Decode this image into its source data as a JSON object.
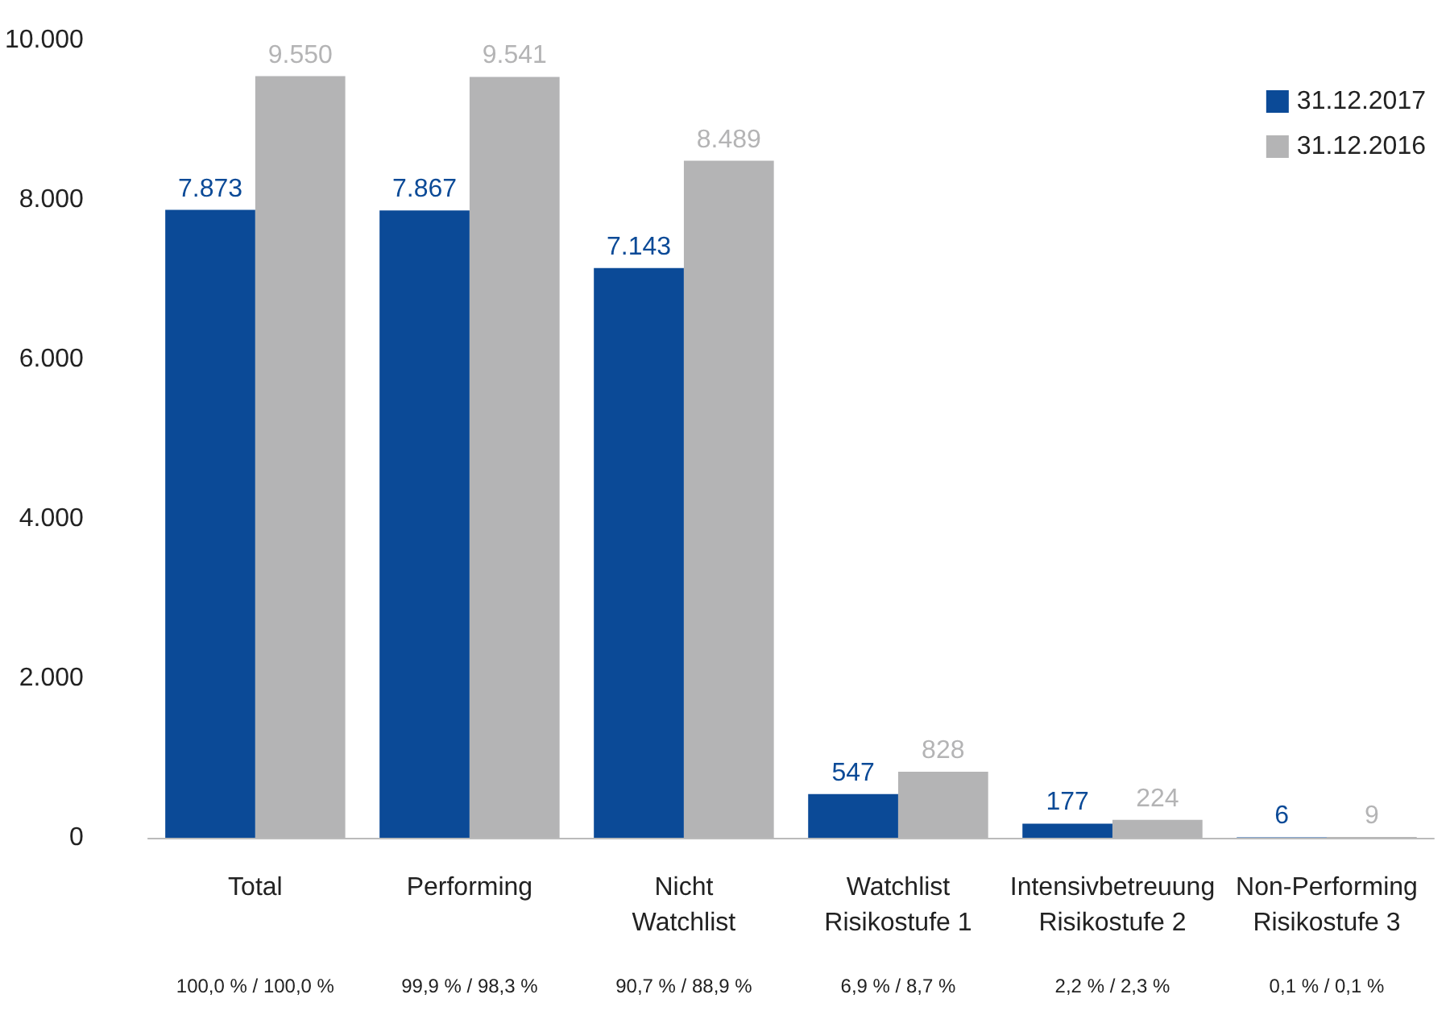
{
  "chart_data": {
    "type": "bar",
    "categories": [
      "Total",
      "Performing",
      "Nicht\nWatchlist",
      "Watchlist\nRisikostufe 1",
      "Intensivbetreuung\nRisikostufe 2",
      "Non-Performing\nRisikostufe 3"
    ],
    "series": [
      {
        "name": "31.12.2017",
        "color": "#0b4a97",
        "values": [
          7873,
          7867,
          7143,
          547,
          177,
          6
        ],
        "value_labels": [
          "7.873",
          "7.867",
          "7.143",
          "547",
          "177",
          "6"
        ]
      },
      {
        "name": "31.12.2016",
        "color": "#b4b4b5",
        "values": [
          9550,
          9541,
          8489,
          828,
          224,
          9
        ],
        "value_labels": [
          "9.550",
          "9.541",
          "8.489",
          "828",
          "224",
          "9"
        ]
      }
    ],
    "ylim": [
      0,
      10000
    ],
    "yticks": [
      {
        "value": 0,
        "label": "0"
      },
      {
        "value": 2000,
        "label": "2.000"
      },
      {
        "value": 4000,
        "label": "4.000"
      },
      {
        "value": 6000,
        "label": "6.000"
      },
      {
        "value": 8000,
        "label": "8.000"
      },
      {
        "value": 10000,
        "label": "10.000"
      }
    ],
    "grid": false,
    "legend": "top right",
    "annotations": [
      "100,0 % / 100,0 %",
      "99,9 % / 98,3 %",
      "90,7 % / 88,9 %",
      "6,9 % / 8,7 %",
      "2,2 % / 2,3 %",
      "0,1 % / 0,1 %"
    ]
  }
}
